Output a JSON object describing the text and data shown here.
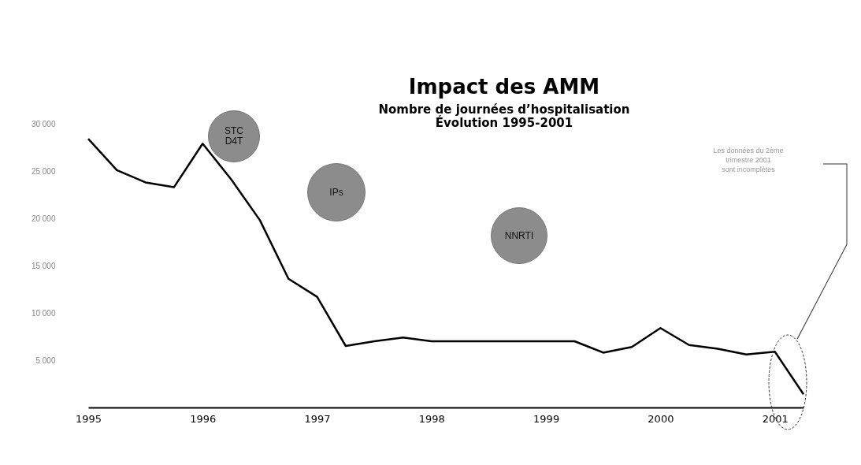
{
  "chart_data": {
    "type": "line",
    "title": "Impact des AMM",
    "subtitle": "Nombre de journées d’hospitalisation\nÉvolution 1995-2001",
    "categories": [
      "1995",
      null,
      null,
      null,
      "1996",
      null,
      null,
      null,
      "1997",
      null,
      null,
      null,
      "1998",
      null,
      null,
      null,
      "1999",
      null,
      null,
      null,
      "2000",
      null,
      null,
      null,
      "2001",
      null
    ],
    "series": [
      {
        "color": "#000000",
        "values": [
          28400,
          25100,
          23800,
          23300,
          27900,
          24100,
          19800,
          13600,
          11700,
          6500,
          7000,
          7400,
          7000,
          7000,
          7000,
          7000,
          7000,
          7000,
          5800,
          6400,
          8400,
          6600,
          6200,
          5600,
          5900,
          1400
        ]
      }
    ],
    "ylim": [
      0,
      30000
    ],
    "yticks": [
      {
        "value": 5000,
        "label": "5 000"
      },
      {
        "value": 10000,
        "label": "10 000"
      },
      {
        "value": 15000,
        "label": "15 000"
      },
      {
        "value": 20000,
        "label": "20 000"
      },
      {
        "value": 25000,
        "label": "25 000"
      },
      {
        "value": 30000,
        "label": "30 000"
      }
    ],
    "annotations": [
      "STC\nD4T",
      "IPs",
      "NNRTI",
      "Les données du 2ème\ntrimestre 2001\nsont incomplètes"
    ],
    "grid": false,
    "legend": false,
    "marker": "none",
    "line_style": "solid"
  }
}
